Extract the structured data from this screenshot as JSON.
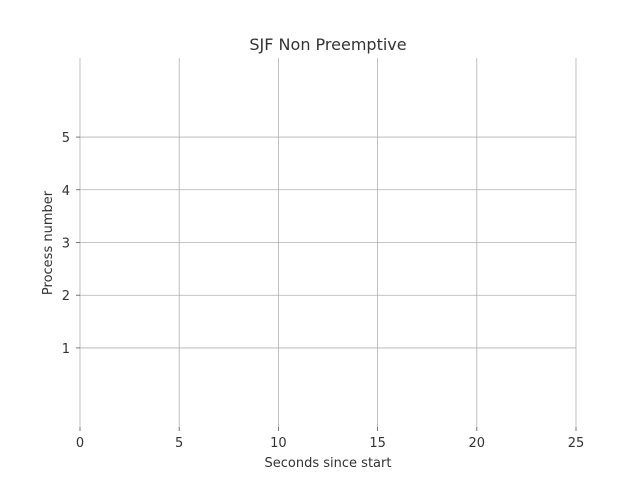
{
  "chart_data": {
    "type": "bar",
    "title": "SJF Non Preemptive",
    "xlabel": "Seconds since start",
    "ylabel": "Process number",
    "xlim": [
      0,
      25
    ],
    "ylim": [
      -0.5,
      6.5
    ],
    "xticks": [
      0,
      5,
      10,
      15,
      20,
      25
    ],
    "yticks": [
      1,
      2,
      3,
      4,
      5
    ],
    "grid": true,
    "series": []
  }
}
